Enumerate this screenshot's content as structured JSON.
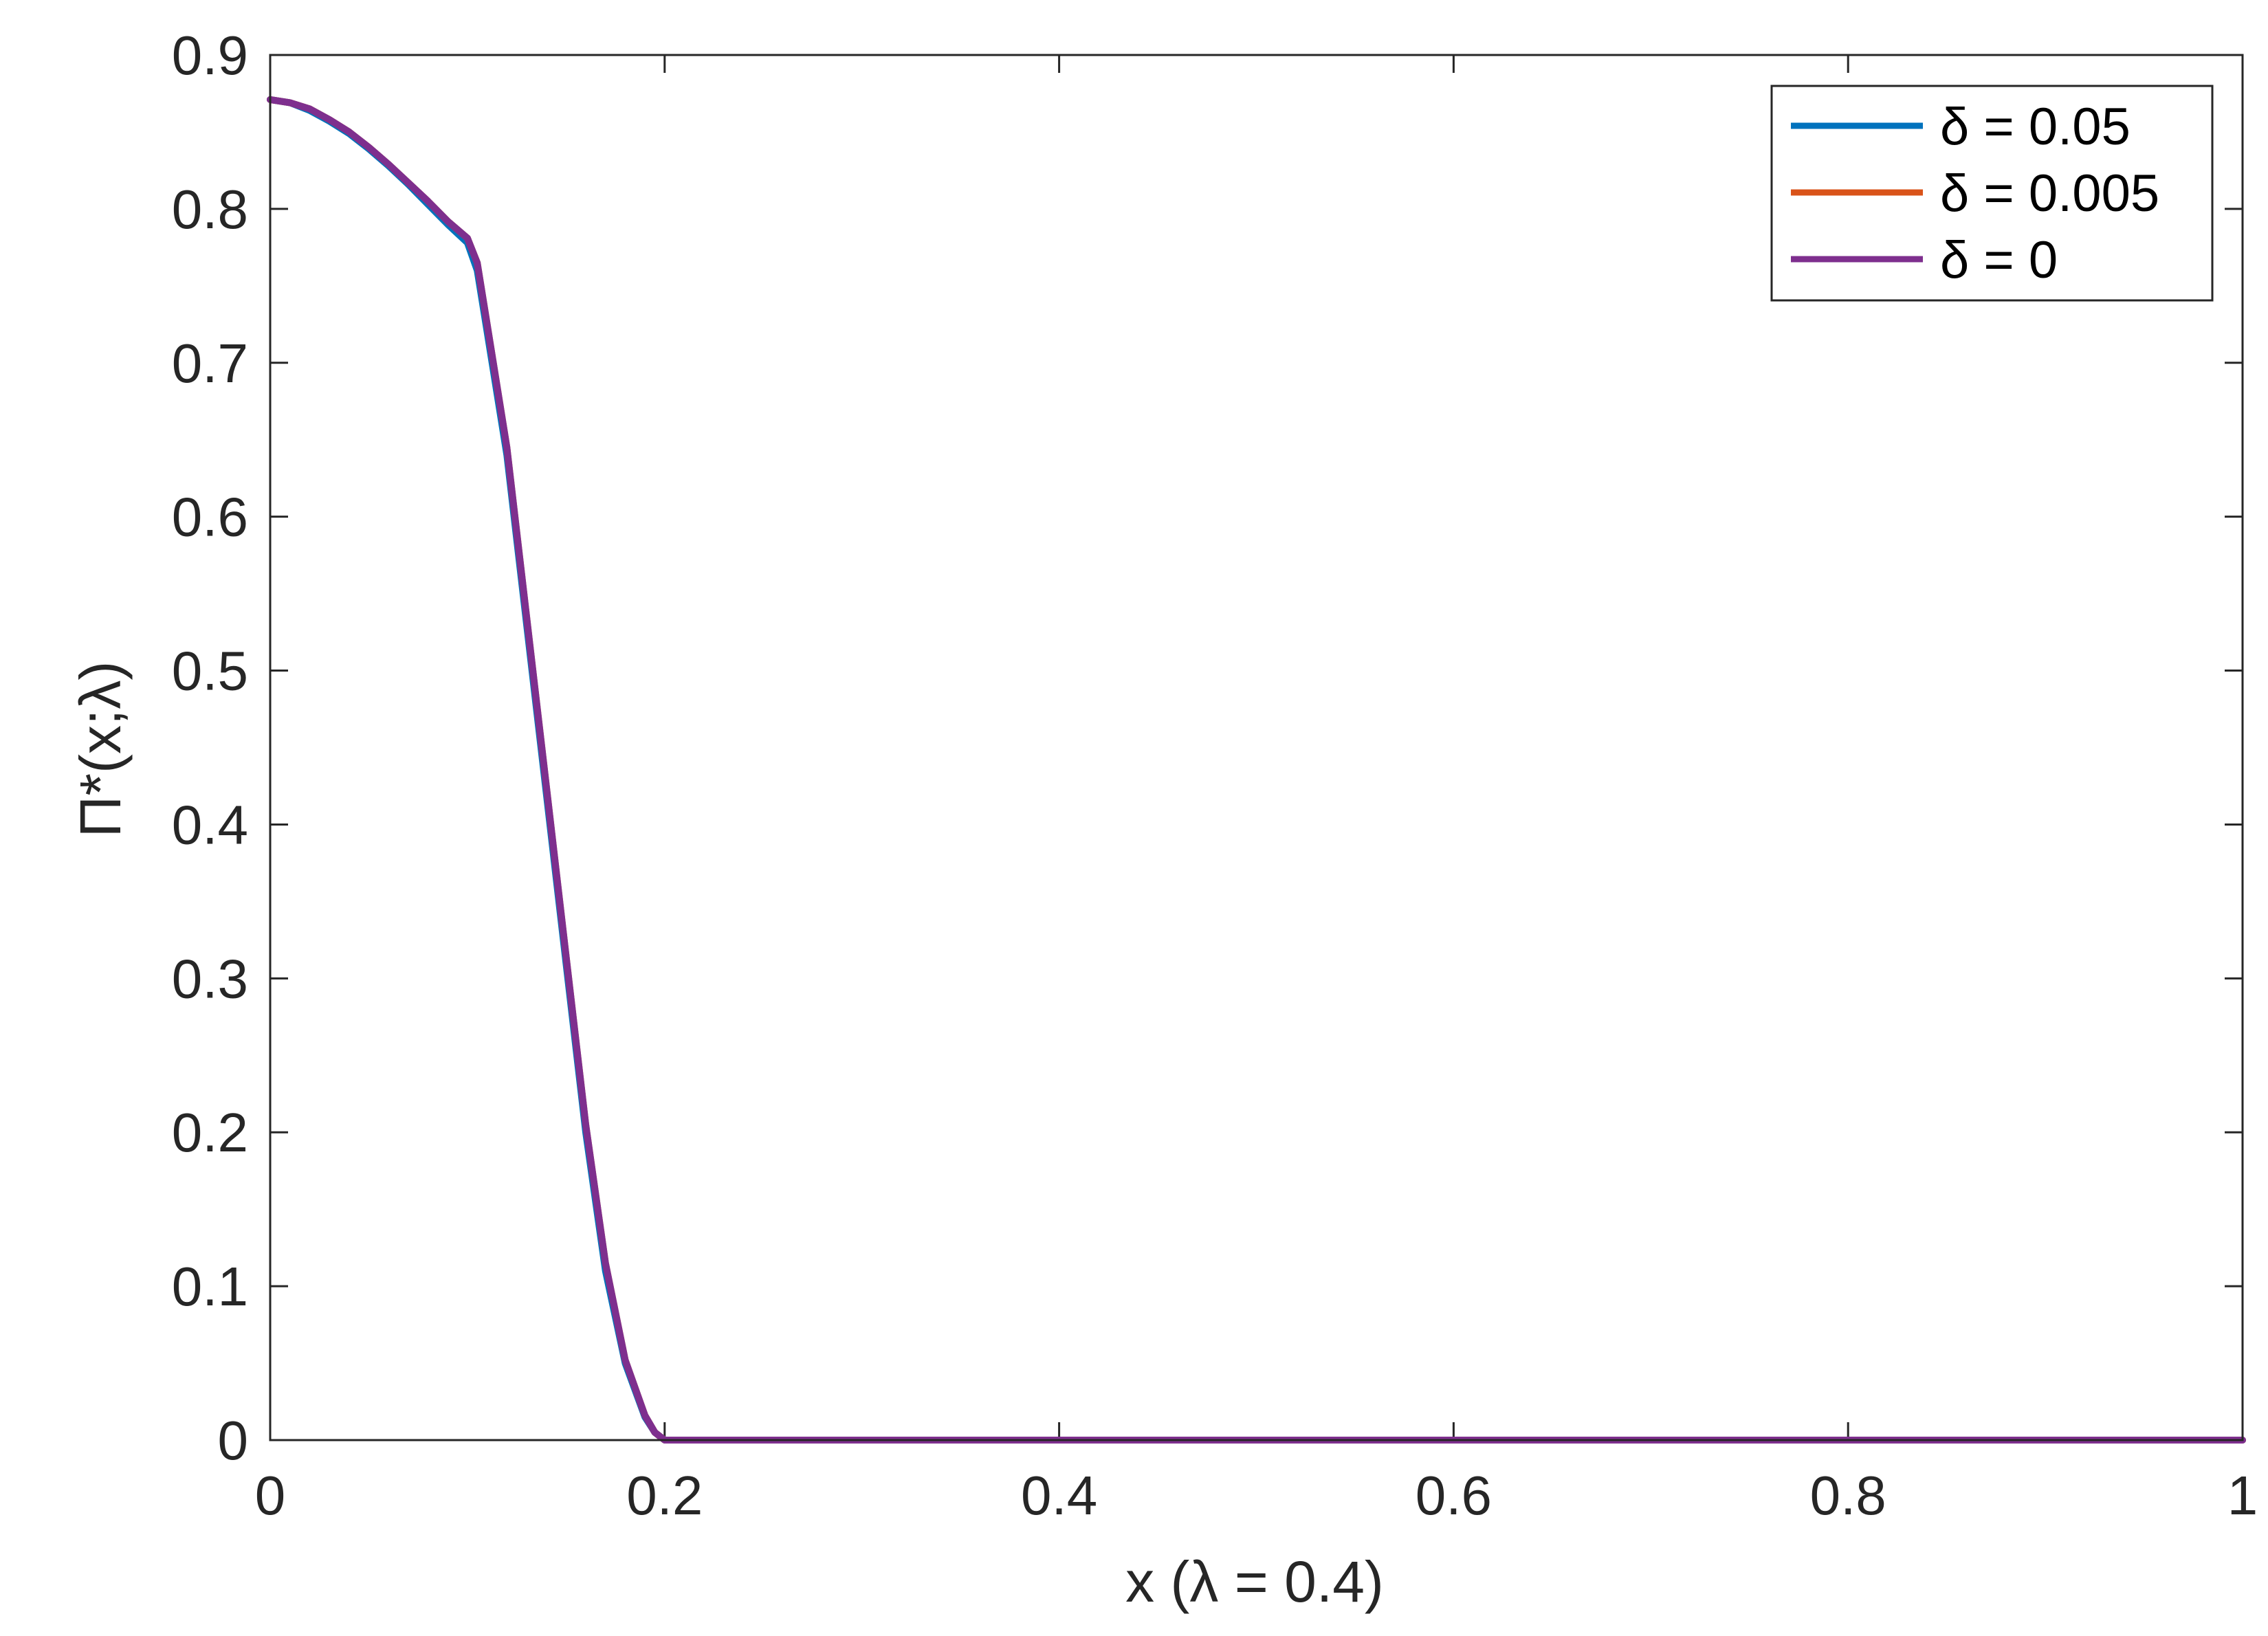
{
  "chart_data": {
    "type": "line",
    "title": "",
    "xlabel": "x (λ = 0.4)",
    "ylabel": "Π*(x;λ)",
    "xlim": [
      0,
      1
    ],
    "ylim": [
      0,
      0.9
    ],
    "xticks": [
      0,
      0.2,
      0.4,
      0.6,
      0.8,
      1
    ],
    "xtick_labels": [
      "0",
      "0.2",
      "0.4",
      "0.6",
      "0.8",
      "1"
    ],
    "yticks": [
      0,
      0.1,
      0.2,
      0.3,
      0.4,
      0.5,
      0.6,
      0.7,
      0.8,
      0.9
    ],
    "ytick_labels": [
      "0",
      "0.1",
      "0.2",
      "0.3",
      "0.4",
      "0.5",
      "0.6",
      "0.7",
      "0.8",
      "0.9"
    ],
    "grid": false,
    "legend_position": "top-right",
    "series": [
      {
        "name": "δ = 0.05",
        "color": "#0072BD",
        "x": [
          0,
          0.01,
          0.02,
          0.03,
          0.04,
          0.05,
          0.06,
          0.07,
          0.08,
          0.09,
          0.1,
          0.105,
          0.11,
          0.12,
          0.13,
          0.14,
          0.15,
          0.16,
          0.17,
          0.18,
          0.19,
          0.195,
          0.2,
          0.25,
          0.3,
          0.4,
          0.5,
          0.6,
          0.7,
          0.8,
          0.9,
          1
        ],
        "y": [
          0.871,
          0.869,
          0.864,
          0.857,
          0.849,
          0.839,
          0.828,
          0.816,
          0.803,
          0.79,
          0.778,
          0.76,
          0.72,
          0.64,
          0.53,
          0.42,
          0.31,
          0.2,
          0.11,
          0.05,
          0.015,
          0.005,
          0,
          0,
          0,
          0,
          0,
          0,
          0,
          0,
          0,
          0
        ]
      },
      {
        "name": "δ = 0.005",
        "color": "#D95319",
        "x": [
          0,
          0.01,
          0.02,
          0.03,
          0.04,
          0.05,
          0.06,
          0.07,
          0.08,
          0.09,
          0.1,
          0.105,
          0.11,
          0.12,
          0.13,
          0.14,
          0.15,
          0.16,
          0.17,
          0.18,
          0.19,
          0.195,
          0.2,
          0.25,
          0.3,
          0.4,
          0.5,
          0.6,
          0.7,
          0.8,
          0.9,
          1
        ],
        "y": [
          0.871,
          0.869,
          0.865,
          0.858,
          0.85,
          0.84,
          0.829,
          0.817,
          0.805,
          0.792,
          0.781,
          0.765,
          0.725,
          0.645,
          0.535,
          0.425,
          0.315,
          0.205,
          0.115,
          0.052,
          0.016,
          0.005,
          0,
          0,
          0,
          0,
          0,
          0,
          0,
          0,
          0,
          0
        ]
      },
      {
        "name": "δ = 0",
        "color": "#7E2F8E",
        "x": [
          0,
          0.01,
          0.02,
          0.03,
          0.04,
          0.05,
          0.06,
          0.07,
          0.08,
          0.09,
          0.1,
          0.105,
          0.11,
          0.12,
          0.13,
          0.14,
          0.15,
          0.16,
          0.17,
          0.18,
          0.19,
          0.195,
          0.2,
          0.25,
          0.3,
          0.4,
          0.5,
          0.6,
          0.7,
          0.8,
          0.9,
          1
        ],
        "y": [
          0.871,
          0.869,
          0.865,
          0.858,
          0.85,
          0.84,
          0.829,
          0.817,
          0.805,
          0.792,
          0.781,
          0.765,
          0.725,
          0.645,
          0.535,
          0.425,
          0.315,
          0.205,
          0.115,
          0.052,
          0.016,
          0.005,
          0,
          0,
          0,
          0,
          0,
          0,
          0,
          0,
          0,
          0
        ]
      }
    ]
  }
}
